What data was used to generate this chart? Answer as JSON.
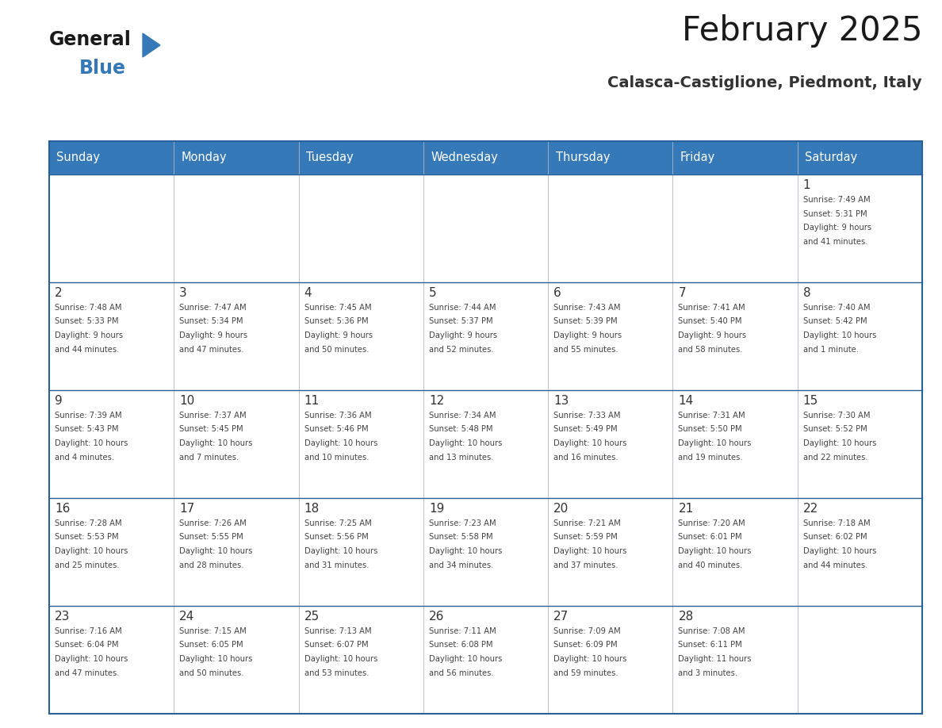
{
  "title": "February 2025",
  "subtitle": "Calasca-Castiglione, Piedmont, Italy",
  "header_bg_color": "#3579b8",
  "header_text_color": "#ffffff",
  "cell_bg_color": "#ffffff",
  "day_number_color": "#333333",
  "info_text_color": "#444444",
  "border_color": "#2a6099",
  "days_of_week": [
    "Sunday",
    "Monday",
    "Tuesday",
    "Wednesday",
    "Thursday",
    "Friday",
    "Saturday"
  ],
  "calendar_data": [
    [
      null,
      null,
      null,
      null,
      null,
      null,
      {
        "day": 1,
        "sunrise": "7:49 AM",
        "sunset": "5:31 PM",
        "daylight": "9 hours\nand 41 minutes."
      }
    ],
    [
      {
        "day": 2,
        "sunrise": "7:48 AM",
        "sunset": "5:33 PM",
        "daylight": "9 hours\nand 44 minutes."
      },
      {
        "day": 3,
        "sunrise": "7:47 AM",
        "sunset": "5:34 PM",
        "daylight": "9 hours\nand 47 minutes."
      },
      {
        "day": 4,
        "sunrise": "7:45 AM",
        "sunset": "5:36 PM",
        "daylight": "9 hours\nand 50 minutes."
      },
      {
        "day": 5,
        "sunrise": "7:44 AM",
        "sunset": "5:37 PM",
        "daylight": "9 hours\nand 52 minutes."
      },
      {
        "day": 6,
        "sunrise": "7:43 AM",
        "sunset": "5:39 PM",
        "daylight": "9 hours\nand 55 minutes."
      },
      {
        "day": 7,
        "sunrise": "7:41 AM",
        "sunset": "5:40 PM",
        "daylight": "9 hours\nand 58 minutes."
      },
      {
        "day": 8,
        "sunrise": "7:40 AM",
        "sunset": "5:42 PM",
        "daylight": "10 hours\nand 1 minute."
      }
    ],
    [
      {
        "day": 9,
        "sunrise": "7:39 AM",
        "sunset": "5:43 PM",
        "daylight": "10 hours\nand 4 minutes."
      },
      {
        "day": 10,
        "sunrise": "7:37 AM",
        "sunset": "5:45 PM",
        "daylight": "10 hours\nand 7 minutes."
      },
      {
        "day": 11,
        "sunrise": "7:36 AM",
        "sunset": "5:46 PM",
        "daylight": "10 hours\nand 10 minutes."
      },
      {
        "day": 12,
        "sunrise": "7:34 AM",
        "sunset": "5:48 PM",
        "daylight": "10 hours\nand 13 minutes."
      },
      {
        "day": 13,
        "sunrise": "7:33 AM",
        "sunset": "5:49 PM",
        "daylight": "10 hours\nand 16 minutes."
      },
      {
        "day": 14,
        "sunrise": "7:31 AM",
        "sunset": "5:50 PM",
        "daylight": "10 hours\nand 19 minutes."
      },
      {
        "day": 15,
        "sunrise": "7:30 AM",
        "sunset": "5:52 PM",
        "daylight": "10 hours\nand 22 minutes."
      }
    ],
    [
      {
        "day": 16,
        "sunrise": "7:28 AM",
        "sunset": "5:53 PM",
        "daylight": "10 hours\nand 25 minutes."
      },
      {
        "day": 17,
        "sunrise": "7:26 AM",
        "sunset": "5:55 PM",
        "daylight": "10 hours\nand 28 minutes."
      },
      {
        "day": 18,
        "sunrise": "7:25 AM",
        "sunset": "5:56 PM",
        "daylight": "10 hours\nand 31 minutes."
      },
      {
        "day": 19,
        "sunrise": "7:23 AM",
        "sunset": "5:58 PM",
        "daylight": "10 hours\nand 34 minutes."
      },
      {
        "day": 20,
        "sunrise": "7:21 AM",
        "sunset": "5:59 PM",
        "daylight": "10 hours\nand 37 minutes."
      },
      {
        "day": 21,
        "sunrise": "7:20 AM",
        "sunset": "6:01 PM",
        "daylight": "10 hours\nand 40 minutes."
      },
      {
        "day": 22,
        "sunrise": "7:18 AM",
        "sunset": "6:02 PM",
        "daylight": "10 hours\nand 44 minutes."
      }
    ],
    [
      {
        "day": 23,
        "sunrise": "7:16 AM",
        "sunset": "6:04 PM",
        "daylight": "10 hours\nand 47 minutes."
      },
      {
        "day": 24,
        "sunrise": "7:15 AM",
        "sunset": "6:05 PM",
        "daylight": "10 hours\nand 50 minutes."
      },
      {
        "day": 25,
        "sunrise": "7:13 AM",
        "sunset": "6:07 PM",
        "daylight": "10 hours\nand 53 minutes."
      },
      {
        "day": 26,
        "sunrise": "7:11 AM",
        "sunset": "6:08 PM",
        "daylight": "10 hours\nand 56 minutes."
      },
      {
        "day": 27,
        "sunrise": "7:09 AM",
        "sunset": "6:09 PM",
        "daylight": "10 hours\nand 59 minutes."
      },
      {
        "day": 28,
        "sunrise": "7:08 AM",
        "sunset": "6:11 PM",
        "daylight": "11 hours\nand 3 minutes."
      },
      null
    ]
  ],
  "fig_width": 11.88,
  "fig_height": 9.18
}
